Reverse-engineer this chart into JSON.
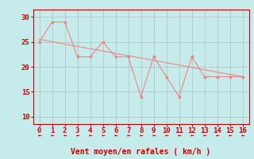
{
  "title": "",
  "xlabel": "Vent moyen/en rafales ( km/h )",
  "background_color": "#c5eceb",
  "line_color": "#f08080",
  "marker_color": "#f08080",
  "grid_color": "#b0b0b0",
  "axis_color": "#cc0000",
  "tick_color": "#cc0000",
  "label_color": "#cc0000",
  "xlim": [
    -0.5,
    16.5
  ],
  "ylim": [
    8.5,
    31.5
  ],
  "yticks": [
    10,
    15,
    20,
    25,
    30
  ],
  "xticks": [
    0,
    1,
    2,
    3,
    4,
    5,
    6,
    7,
    8,
    9,
    10,
    11,
    12,
    13,
    14,
    15,
    16
  ],
  "series1_x": [
    0,
    1,
    2,
    3,
    4,
    5,
    6,
    7,
    8,
    9,
    10,
    11,
    12,
    13,
    14,
    15,
    16
  ],
  "series1_y": [
    25,
    29,
    29,
    22,
    22,
    25,
    22,
    22,
    14,
    22,
    18,
    14,
    22,
    18,
    18,
    18,
    18
  ],
  "series2_x": [
    0,
    16
  ],
  "series2_y": [
    25.5,
    18
  ],
  "arrow_symbol": "←"
}
